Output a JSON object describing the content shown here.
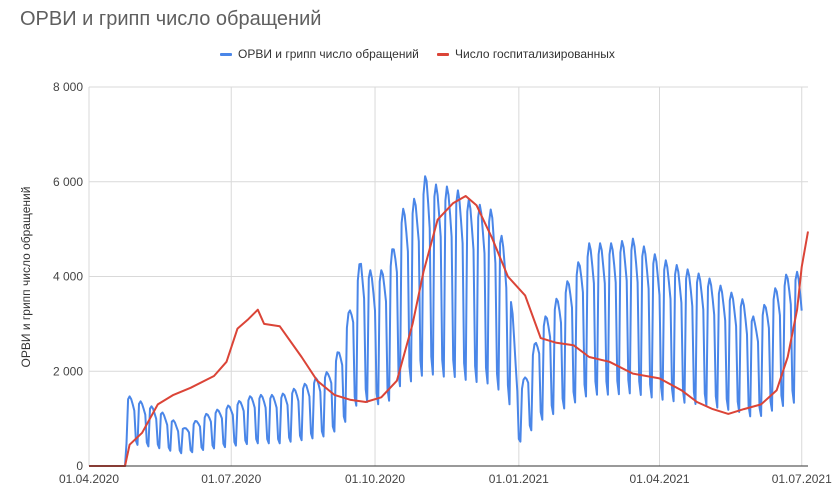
{
  "chart_data": {
    "type": "line",
    "title": "ОРВИ и грипп число обращений",
    "xlabel": "",
    "ylabel": "ОРВИ и грипп число обращений",
    "ylim": [
      0,
      8000
    ],
    "y_ticks": [
      0,
      2000,
      4000,
      6000,
      8000
    ],
    "y_tick_labels": [
      "0",
      "2 000",
      "4 000",
      "6 000",
      "8 000"
    ],
    "x_ticks": [
      "2020-04-01",
      "2020-07-01",
      "2020-10-01",
      "2021-01-01",
      "2021-04-01",
      "2021-07-01"
    ],
    "x_tick_labels": [
      "01.04.2020",
      "01.07.2020",
      "01.10.2020",
      "01.01.2021",
      "01.04.2021",
      "01.07.2021"
    ],
    "xlim": [
      "2020-04-01",
      "2021-07-05"
    ],
    "grid": true,
    "legend_position": "top",
    "series": [
      {
        "name": "ОРВИ и грипп число обращений",
        "color": "#4a86e8",
        "pattern": "weekly",
        "points": [
          [
            "2020-04-01",
            0
          ],
          [
            "2020-04-24",
            0
          ],
          [
            "2020-04-25",
            1500
          ],
          [
            "2020-05-15",
            1200
          ],
          [
            "2020-06-01",
            800
          ],
          [
            "2020-06-15",
            1100
          ],
          [
            "2020-07-01",
            1300
          ],
          [
            "2020-07-15",
            1500
          ],
          [
            "2020-08-01",
            1500
          ],
          [
            "2020-08-15",
            1700
          ],
          [
            "2020-09-01",
            2000
          ],
          [
            "2020-09-10",
            2600
          ],
          [
            "2020-09-17",
            3700
          ],
          [
            "2020-09-22",
            4400
          ],
          [
            "2020-10-01",
            4000
          ],
          [
            "2020-10-10",
            4300
          ],
          [
            "2020-10-18",
            5400
          ],
          [
            "2020-10-28",
            5700
          ],
          [
            "2020-11-03",
            6200
          ],
          [
            "2020-11-10",
            5900
          ],
          [
            "2020-11-20",
            5900
          ],
          [
            "2020-12-01",
            5600
          ],
          [
            "2020-12-15",
            5400
          ],
          [
            "2020-12-25",
            4500
          ],
          [
            "2021-01-01",
            1500
          ],
          [
            "2021-01-15",
            3000
          ],
          [
            "2021-02-01",
            3900
          ],
          [
            "2021-02-15",
            4700
          ],
          [
            "2021-03-01",
            4700
          ],
          [
            "2021-03-15",
            4800
          ],
          [
            "2021-04-01",
            4400
          ],
          [
            "2021-04-15",
            4200
          ],
          [
            "2021-05-01",
            4000
          ],
          [
            "2021-05-15",
            3700
          ],
          [
            "2021-05-25",
            3500
          ],
          [
            "2021-06-01",
            3100
          ],
          [
            "2021-06-15",
            3800
          ],
          [
            "2021-06-25",
            4200
          ],
          [
            "2021-07-01",
            4000
          ]
        ]
      },
      {
        "name": "Число госпитализированных",
        "color": "#db4437",
        "points": [
          [
            "2020-04-01",
            0
          ],
          [
            "2020-04-24",
            0
          ],
          [
            "2020-04-27",
            450
          ],
          [
            "2020-05-05",
            700
          ],
          [
            "2020-05-15",
            1300
          ],
          [
            "2020-05-25",
            1500
          ],
          [
            "2020-06-05",
            1650
          ],
          [
            "2020-06-20",
            1900
          ],
          [
            "2020-06-28",
            2200
          ],
          [
            "2020-07-05",
            2900
          ],
          [
            "2020-07-12",
            3100
          ],
          [
            "2020-07-18",
            3300
          ],
          [
            "2020-07-22",
            3000
          ],
          [
            "2020-08-01",
            2950
          ],
          [
            "2020-08-15",
            2300
          ],
          [
            "2020-08-25",
            1800
          ],
          [
            "2020-09-05",
            1500
          ],
          [
            "2020-09-15",
            1400
          ],
          [
            "2020-09-25",
            1350
          ],
          [
            "2020-10-05",
            1450
          ],
          [
            "2020-10-15",
            1800
          ],
          [
            "2020-10-25",
            3000
          ],
          [
            "2020-11-01",
            4100
          ],
          [
            "2020-11-10",
            5200
          ],
          [
            "2020-11-20",
            5550
          ],
          [
            "2020-11-28",
            5700
          ],
          [
            "2020-12-05",
            5500
          ],
          [
            "2020-12-15",
            4800
          ],
          [
            "2020-12-25",
            4000
          ],
          [
            "2021-01-05",
            3600
          ],
          [
            "2021-01-15",
            2700
          ],
          [
            "2021-01-25",
            2600
          ],
          [
            "2021-02-05",
            2550
          ],
          [
            "2021-02-15",
            2300
          ],
          [
            "2021-02-28",
            2200
          ],
          [
            "2021-03-15",
            1950
          ],
          [
            "2021-04-01",
            1850
          ],
          [
            "2021-04-15",
            1600
          ],
          [
            "2021-04-25",
            1350
          ],
          [
            "2021-05-05",
            1200
          ],
          [
            "2021-05-15",
            1100
          ],
          [
            "2021-05-25",
            1200
          ],
          [
            "2021-06-05",
            1300
          ],
          [
            "2021-06-15",
            1600
          ],
          [
            "2021-06-22",
            2300
          ],
          [
            "2021-06-28",
            3300
          ],
          [
            "2021-07-01",
            4200
          ],
          [
            "2021-07-05",
            4950
          ]
        ]
      }
    ]
  }
}
